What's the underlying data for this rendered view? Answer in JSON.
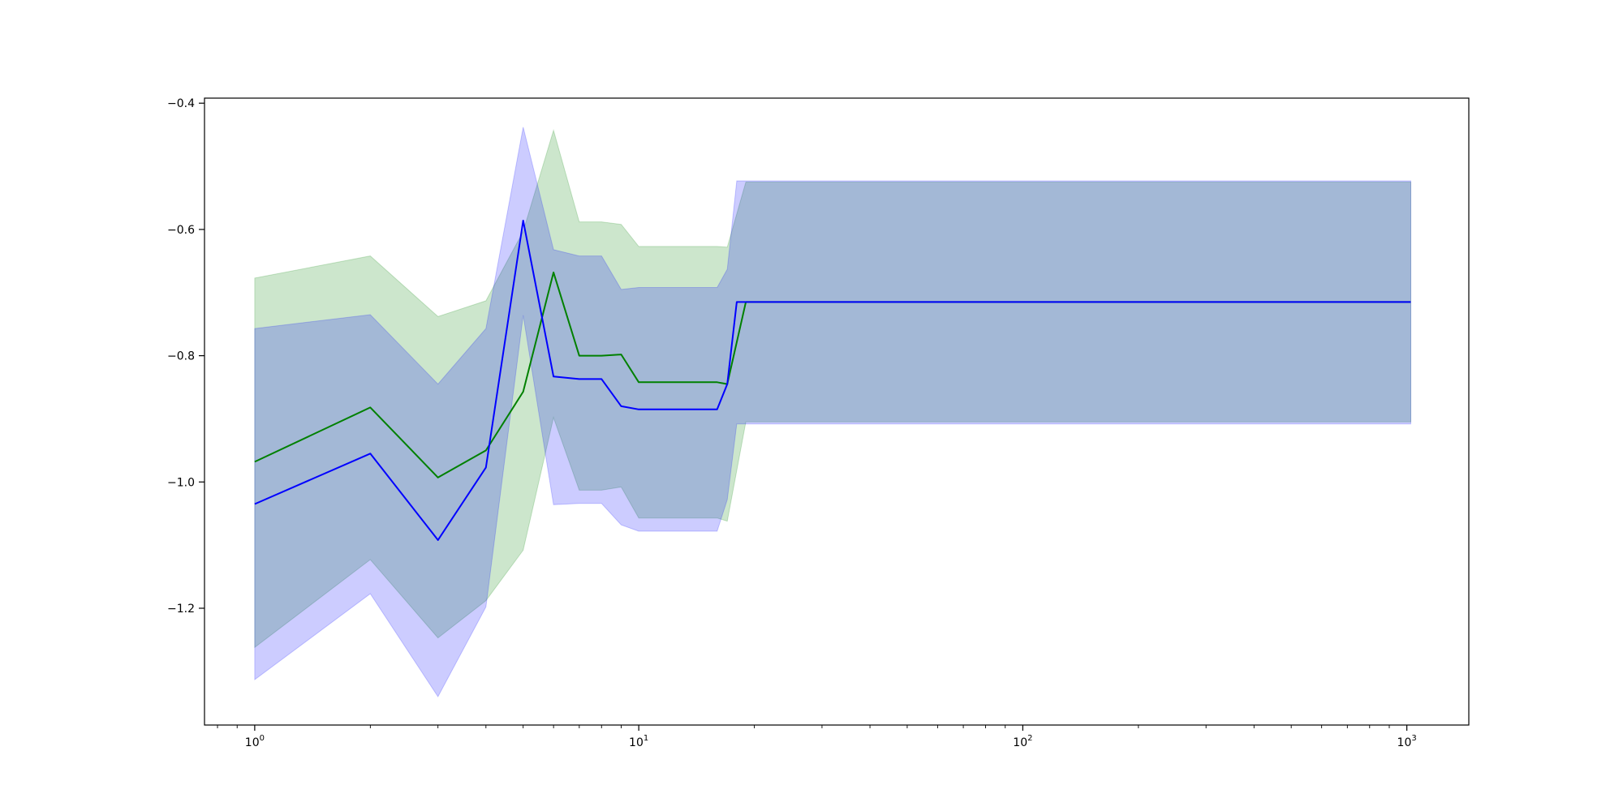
{
  "chart_data": {
    "type": "line",
    "title": "",
    "xlabel": "",
    "ylabel": "",
    "xscale": "log",
    "xlim": [
      0.74,
      1450
    ],
    "ylim": [
      -1.385,
      -0.392
    ],
    "grid": false,
    "legend": "none",
    "x_ticks": [
      {
        "value": 1,
        "base": "10",
        "exp": "0"
      },
      {
        "value": 10,
        "base": "10",
        "exp": "1"
      },
      {
        "value": 100,
        "base": "10",
        "exp": "2"
      },
      {
        "value": 1000,
        "base": "10",
        "exp": "3"
      }
    ],
    "y_ticks": [
      {
        "value": -1.2,
        "label": "−1.2"
      },
      {
        "value": -1.0,
        "label": "−1.0"
      },
      {
        "value": -0.8,
        "label": "−0.8"
      },
      {
        "value": -0.6,
        "label": "−0.6"
      },
      {
        "value": -0.4,
        "label": "−0.4"
      }
    ],
    "series": [
      {
        "color": "#008000",
        "band_color": "#008000",
        "x": [
          1,
          2,
          3,
          4,
          5,
          6,
          7,
          8,
          9,
          10,
          16,
          17,
          19,
          1024
        ],
        "values": [
          -0.968,
          -0.882,
          -0.993,
          -0.95,
          -0.857,
          -0.668,
          -0.8,
          -0.8,
          -0.798,
          -0.842,
          -0.842,
          -0.845,
          -0.715,
          -0.715
        ],
        "upper": [
          -0.677,
          -0.642,
          -0.738,
          -0.713,
          -0.603,
          -0.443,
          -0.588,
          -0.588,
          -0.592,
          -0.627,
          -0.627,
          -0.628,
          -0.525,
          -0.525
        ],
        "lower": [
          -1.262,
          -1.123,
          -1.247,
          -1.188,
          -1.108,
          -0.898,
          -1.013,
          -1.013,
          -1.008,
          -1.057,
          -1.057,
          -1.062,
          -0.905,
          -0.905
        ]
      },
      {
        "color": "#0000ff",
        "band_color": "#0000ff",
        "x": [
          1,
          2,
          3,
          4,
          5,
          6,
          7,
          8,
          9,
          10,
          16,
          17,
          18,
          1024
        ],
        "values": [
          -1.035,
          -0.955,
          -1.092,
          -0.977,
          -0.586,
          -0.833,
          -0.837,
          -0.837,
          -0.88,
          -0.885,
          -0.885,
          -0.845,
          -0.715,
          -0.715
        ],
        "upper": [
          -0.757,
          -0.735,
          -0.845,
          -0.757,
          -0.438,
          -0.632,
          -0.642,
          -0.642,
          -0.695,
          -0.692,
          -0.692,
          -0.663,
          -0.523,
          -0.523
        ],
        "lower": [
          -1.313,
          -1.177,
          -1.34,
          -1.198,
          -0.736,
          -1.036,
          -1.034,
          -1.034,
          -1.068,
          -1.078,
          -1.078,
          -1.028,
          -0.908,
          -0.908
        ]
      }
    ]
  }
}
